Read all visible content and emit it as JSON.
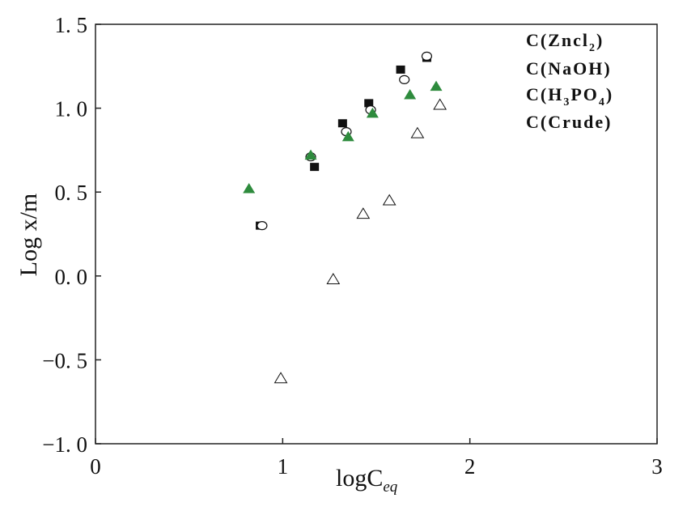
{
  "chart_data": {
    "type": "scatter",
    "xlabel": "logC",
    "xlabel_subscript": "eq",
    "ylabel": "Log x/m",
    "xlim": [
      0,
      3
    ],
    "ylim": [
      -1.0,
      1.5
    ],
    "x_ticks": [
      {
        "value": 0,
        "label": "0"
      },
      {
        "value": 1,
        "label": "1"
      },
      {
        "value": 2,
        "label": "2"
      },
      {
        "value": 3,
        "label": "3"
      }
    ],
    "y_ticks": [
      {
        "value": 1.5,
        "label": "1. 5"
      },
      {
        "value": 1.0,
        "label": "1. 0"
      },
      {
        "value": 0.5,
        "label": "0. 5"
      },
      {
        "value": 0.0,
        "label": "0. 0"
      },
      {
        "value": -0.5,
        "label": "−0. 5"
      },
      {
        "value": -1.0,
        "label": "−1. 0"
      }
    ],
    "grid": false,
    "legend_position": "top-right",
    "series": [
      {
        "name": "C(Zncl2)",
        "legend_main": "C(Zncl",
        "legend_sub": "2",
        "legend_tail": ")",
        "marker": "filled-square",
        "color": "#111111",
        "points": [
          [
            0.88,
            0.3
          ],
          [
            1.17,
            0.65
          ],
          [
            1.32,
            0.91
          ],
          [
            1.46,
            1.03
          ],
          [
            1.63,
            1.23
          ],
          [
            1.77,
            1.3
          ]
        ]
      },
      {
        "name": "C(NaOH)",
        "legend_main": "C(NaOH)",
        "marker": "open-circle",
        "color": "#111111",
        "points": [
          [
            0.89,
            0.3
          ],
          [
            1.15,
            0.71
          ],
          [
            1.34,
            0.86
          ],
          [
            1.47,
            0.99
          ],
          [
            1.65,
            1.17
          ],
          [
            1.77,
            1.31
          ]
        ]
      },
      {
        "name": "C(H3PO4)",
        "legend_main": "C(H",
        "legend_sub": "3",
        "legend_mid": "PO",
        "legend_sub2": "4",
        "legend_tail": ")",
        "marker": "filled-triangle",
        "color": "#2e8b3d",
        "points": [
          [
            0.82,
            0.52
          ],
          [
            1.15,
            0.72
          ],
          [
            1.35,
            0.83
          ],
          [
            1.48,
            0.97
          ],
          [
            1.68,
            1.08
          ],
          [
            1.82,
            1.13
          ]
        ]
      },
      {
        "name": "C(Crude)",
        "legend_main": "C(Crude)",
        "marker": "open-triangle",
        "color": "#111111",
        "points": [
          [
            0.99,
            -0.61
          ],
          [
            1.27,
            -0.02
          ],
          [
            1.43,
            0.37
          ],
          [
            1.57,
            0.45
          ],
          [
            1.72,
            0.85
          ],
          [
            1.84,
            1.02
          ]
        ]
      }
    ]
  }
}
